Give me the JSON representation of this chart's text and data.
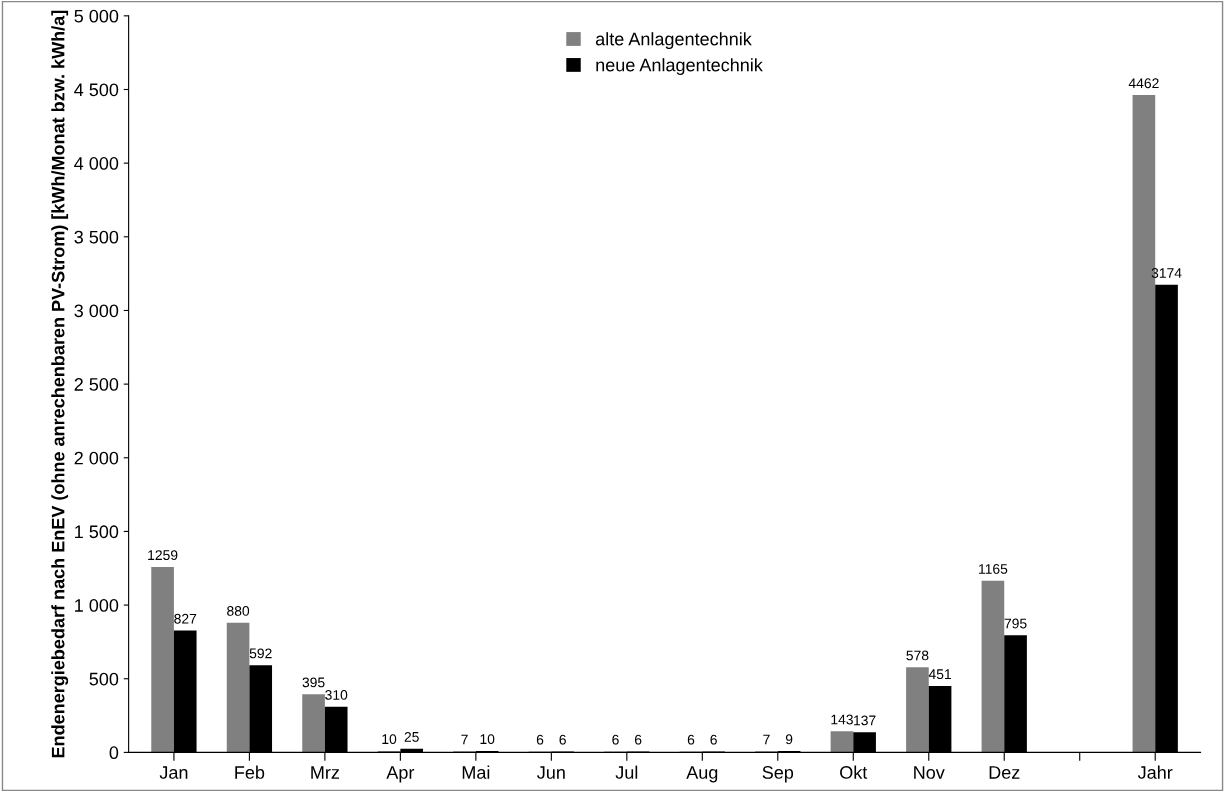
{
  "chart_data": {
    "type": "bar",
    "ylabel": "Endenergiebedarf nach EnEV (ohne anrechenbaren PV-Strom) [kWh/Monat bzw. kWh/a]",
    "categories": [
      "Jan",
      "Feb",
      "Mrz",
      "Apr",
      "Mai",
      "Jun",
      "Jul",
      "Aug",
      "Sep",
      "Okt",
      "Nov",
      "Dez",
      null,
      "Jahr"
    ],
    "series": [
      {
        "name": "alte Anlagentechnik",
        "color": "#808080",
        "values": [
          1259,
          880,
          395,
          10,
          7,
          6,
          6,
          6,
          7,
          143,
          578,
          1165,
          null,
          4462
        ]
      },
      {
        "name": "neue Anlagentechnik",
        "color": "#000000",
        "values": [
          827,
          592,
          310,
          25,
          10,
          6,
          6,
          6,
          9,
          137,
          451,
          795,
          null,
          3174
        ]
      }
    ],
    "ylim": [
      0,
      5000
    ],
    "yticks": [
      0,
      {
        "value": 500,
        "label": "500"
      },
      {
        "value": 1000,
        "label": "1 000"
      },
      {
        "value": 1500,
        "label": "1 500"
      },
      {
        "value": 2000,
        "label": "2 000"
      },
      {
        "value": 2500,
        "label": "2 500"
      },
      {
        "value": 3000,
        "label": "3 000"
      },
      {
        "value": 3500,
        "label": "3 500"
      },
      {
        "value": 4000,
        "label": "4 000"
      },
      {
        "value": 4500,
        "label": "4 500"
      },
      {
        "value": 5000,
        "label": "5 000"
      }
    ],
    "data_labels": true,
    "legend": "top",
    "grid": false
  }
}
